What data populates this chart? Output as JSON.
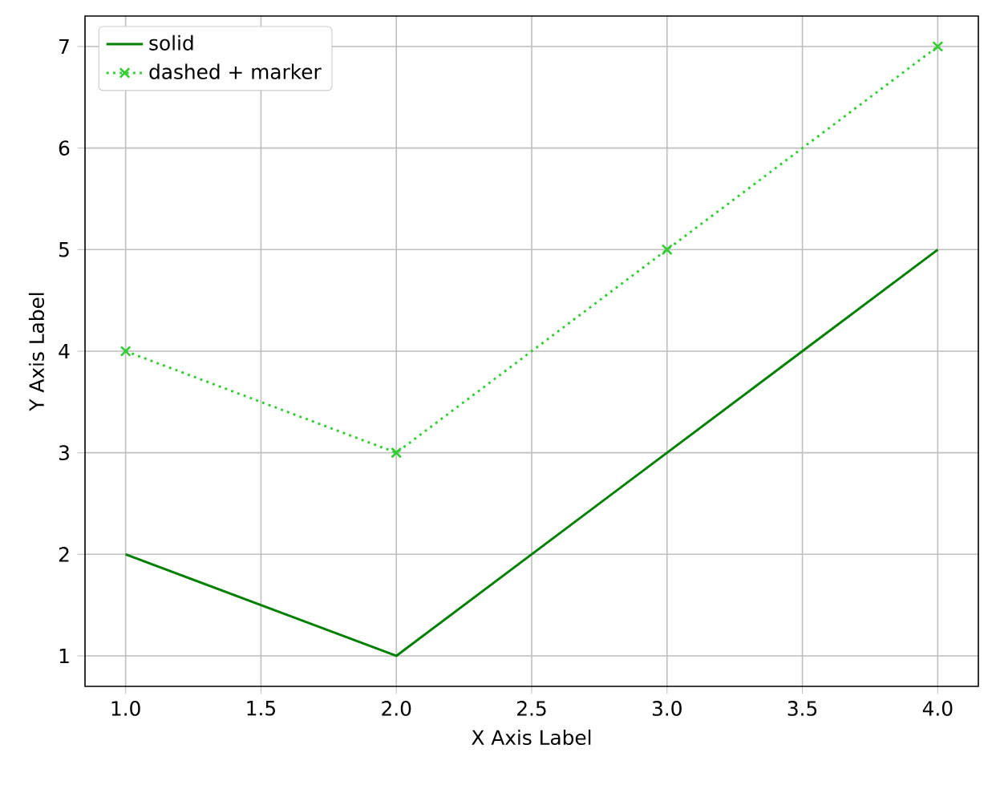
{
  "chart_data": {
    "type": "line",
    "xlabel": "X Axis Label",
    "ylabel": "Y Axis Label",
    "x": [
      1,
      2,
      3,
      4
    ],
    "series": [
      {
        "name": "solid",
        "color": "#008000",
        "values": [
          2,
          1,
          3,
          5
        ],
        "line_style": "solid",
        "marker": "none"
      },
      {
        "name": "dashed + marker",
        "color": "#32cd32",
        "values": [
          4,
          3,
          5,
          7
        ],
        "line_style": "dotted",
        "marker": "cross"
      }
    ],
    "xlim": [
      0.85,
      4.15
    ],
    "ylim": [
      0.7,
      7.3
    ],
    "xticks": [
      {
        "value": 1,
        "label": "1.0"
      },
      {
        "value": 1.5,
        "label": "1.5"
      },
      {
        "value": 2,
        "label": "2.0"
      },
      {
        "value": 2.5,
        "label": "2.5"
      },
      {
        "value": 3,
        "label": "3.0"
      },
      {
        "value": 3.5,
        "label": "3.5"
      },
      {
        "value": 4,
        "label": "4.0"
      }
    ],
    "yticks": [
      1,
      2,
      3,
      4,
      5,
      6,
      7
    ],
    "grid": true,
    "legend": "top left"
  }
}
